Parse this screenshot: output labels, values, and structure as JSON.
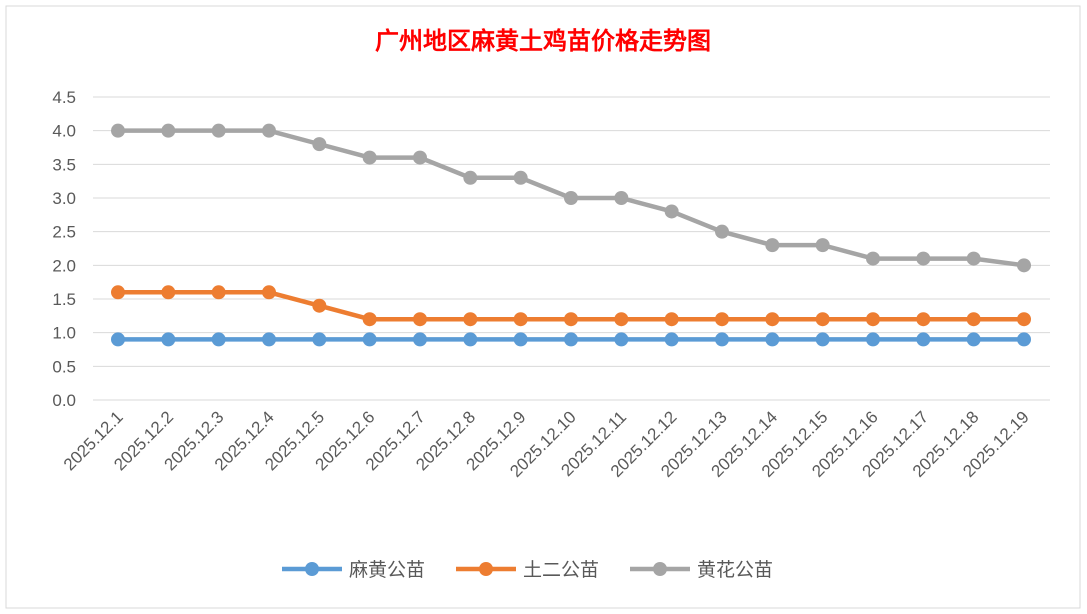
{
  "chart_data": {
    "type": "line",
    "title": "广州地区麻黄土鸡苗价格走势图",
    "xlabel": "",
    "ylabel": "",
    "ylim": [
      0,
      4.5
    ],
    "yticks": [
      "0.0",
      "0.5",
      "1.0",
      "1.5",
      "2.0",
      "2.5",
      "3.0",
      "3.5",
      "4.0",
      "4.5"
    ],
    "grid": true,
    "legend_position": "bottom",
    "categories": [
      "2025.12.1",
      "2025.12.2",
      "2025.12.3",
      "2025.12.4",
      "2025.12.5",
      "2025.12.6",
      "2025.12.7",
      "2025.12.8",
      "2025.12.9",
      "2025.12.10",
      "2025.12.11",
      "2025.12.12",
      "2025.12.13",
      "2025.12.14",
      "2025.12.15",
      "2025.12.16",
      "2025.12.17",
      "2025.12.18",
      "2025.12.19"
    ],
    "series": [
      {
        "name": "麻黄公苗",
        "color": "#5b9bd5",
        "values": [
          0.9,
          0.9,
          0.9,
          0.9,
          0.9,
          0.9,
          0.9,
          0.9,
          0.9,
          0.9,
          0.9,
          0.9,
          0.9,
          0.9,
          0.9,
          0.9,
          0.9,
          0.9,
          0.9
        ]
      },
      {
        "name": "土二公苗",
        "color": "#ed7d31",
        "values": [
          1.6,
          1.6,
          1.6,
          1.6,
          1.4,
          1.2,
          1.2,
          1.2,
          1.2,
          1.2,
          1.2,
          1.2,
          1.2,
          1.2,
          1.2,
          1.2,
          1.2,
          1.2,
          1.2
        ]
      },
      {
        "name": "黄花公苗",
        "color": "#a5a5a5",
        "values": [
          4.0,
          4.0,
          4.0,
          4.0,
          3.8,
          3.6,
          3.6,
          3.3,
          3.3,
          3.0,
          3.0,
          2.8,
          2.5,
          2.3,
          2.3,
          2.1,
          2.1,
          2.1,
          2.0
        ]
      }
    ]
  }
}
